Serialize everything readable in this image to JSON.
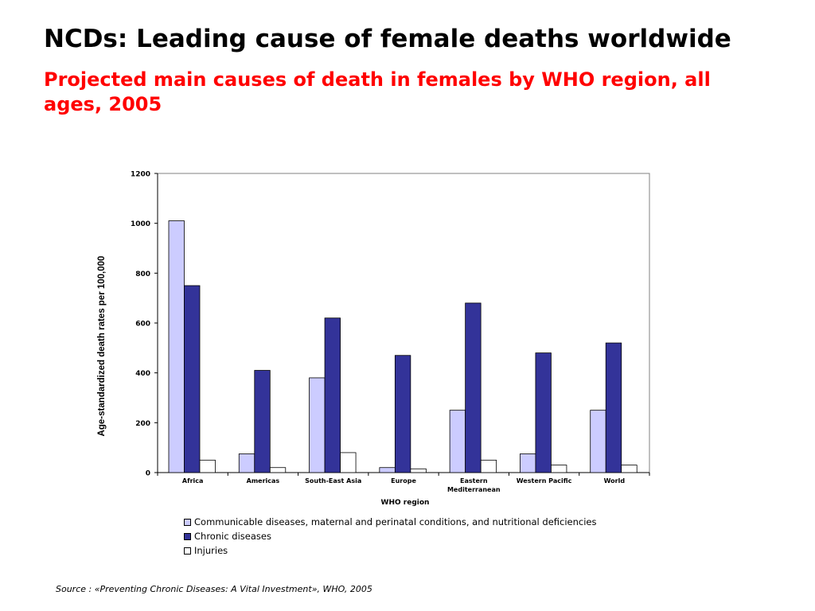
{
  "slide": {
    "title": "NCDs: Leading cause of female deaths worldwide",
    "subtitle": "Projected main causes of death in females by WHO region, all ages, 2005",
    "source": "Source : «Preventing Chronic Diseases: A Vital Investment», WHO, 2005"
  },
  "colors": {
    "title": "#000000",
    "subtitle": "#ff0000",
    "communicable": "#ccccff",
    "chronic": "#333399",
    "injuries": "#ffffff"
  },
  "chart_data": {
    "type": "bar",
    "title": "",
    "xlabel": "WHO region",
    "ylabel": "Age-standardized death rates per 100,000",
    "ylim": [
      0,
      1200
    ],
    "yticks": [
      0,
      200,
      400,
      600,
      800,
      1000,
      1200
    ],
    "grid": false,
    "legend_position": "bottom",
    "categories": [
      "Africa",
      "Americas",
      "South-East Asia",
      "Europe",
      "Eastern Mediterranean",
      "Western Pacific",
      "World"
    ],
    "category_lines": [
      [
        "Africa"
      ],
      [
        "Americas"
      ],
      [
        "South-East Asia"
      ],
      [
        "Europe"
      ],
      [
        "Eastern",
        "Mediterranean"
      ],
      [
        "Western Pacific"
      ],
      [
        "World"
      ]
    ],
    "series": [
      {
        "name": "Communicable diseases, maternal and perinatal conditions, and nutritional deficiencies",
        "color": "#ccccff",
        "values": [
          1010,
          75,
          380,
          20,
          250,
          75,
          250
        ]
      },
      {
        "name": "Chronic diseases",
        "color": "#333399",
        "values": [
          750,
          410,
          620,
          470,
          680,
          480,
          520
        ]
      },
      {
        "name": "Injuries",
        "color": "#ffffff",
        "values": [
          50,
          20,
          80,
          15,
          50,
          30,
          30
        ]
      }
    ]
  }
}
